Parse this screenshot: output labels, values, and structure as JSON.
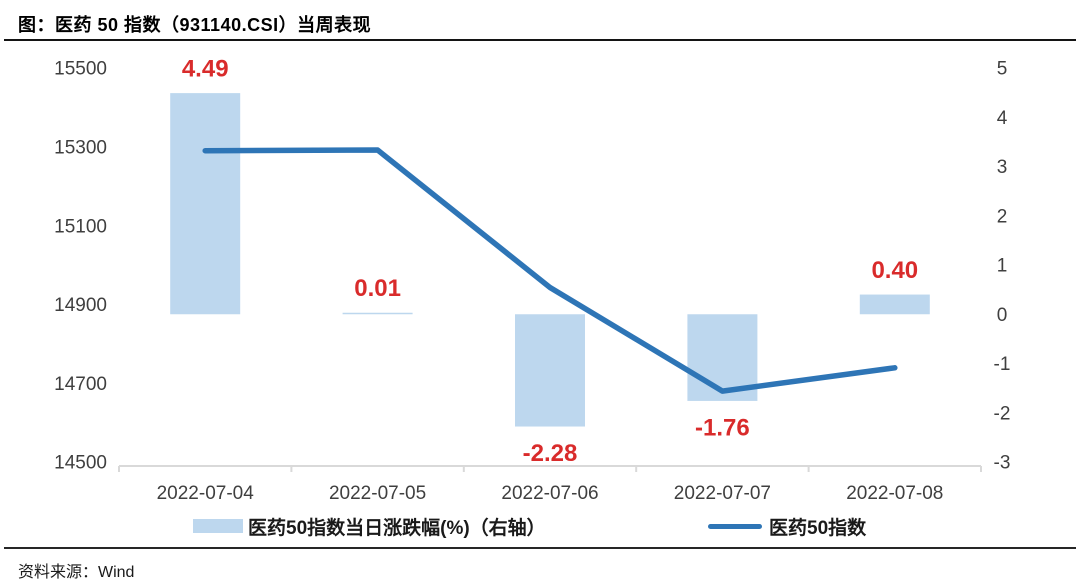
{
  "header": {
    "title": "图：医药 50 指数（931140.CSI）当周表现"
  },
  "source": {
    "label": "资料来源：Wind"
  },
  "colors": {
    "bar_fill": "#BDD7EE",
    "line": "#2E75B6",
    "value_label": "#D92B2B",
    "axis_line": "#D9D9D9",
    "tick_text": "#3F3F3F",
    "x_label_text": "#3F3F3F"
  },
  "chart_data": {
    "type": "combo",
    "title": "图：医药 50 指数（931140.CSI）当周表现",
    "categories": [
      "2022-07-04",
      "2022-07-05",
      "2022-07-06",
      "2022-07-07",
      "2022-07-08"
    ],
    "series": [
      {
        "name": "医药50指数当日涨跌幅(%)（右轴）",
        "type": "bar",
        "axis": "right",
        "values": [
          4.49,
          0.01,
          -2.28,
          -1.76,
          0.4
        ],
        "labels": [
          "4.49",
          "0.01",
          "-2.28",
          "-1.76",
          "0.40"
        ],
        "color": "#BDD7EE"
      },
      {
        "name": "医药50指数",
        "type": "line",
        "axis": "left",
        "values": [
          15290,
          15292,
          14943,
          14680,
          14739
        ],
        "color": "#2E75B6"
      }
    ],
    "left_axis": {
      "min": 14500,
      "max": 15500,
      "ticks": [
        "15500",
        "15300",
        "15100",
        "14900",
        "14700",
        "14500"
      ]
    },
    "right_axis": {
      "min": -3,
      "max": 5,
      "ticks": [
        "5",
        "4",
        "3",
        "2",
        "1",
        "0",
        "-1",
        "-2",
        "-3"
      ]
    },
    "grid": false,
    "legend_position": "bottom"
  },
  "legend": {
    "items": [
      {
        "label": "医药50指数当日涨跌幅(%)（右轴）",
        "swatch": "bar"
      },
      {
        "label": "医药50指数",
        "swatch": "line"
      }
    ]
  }
}
